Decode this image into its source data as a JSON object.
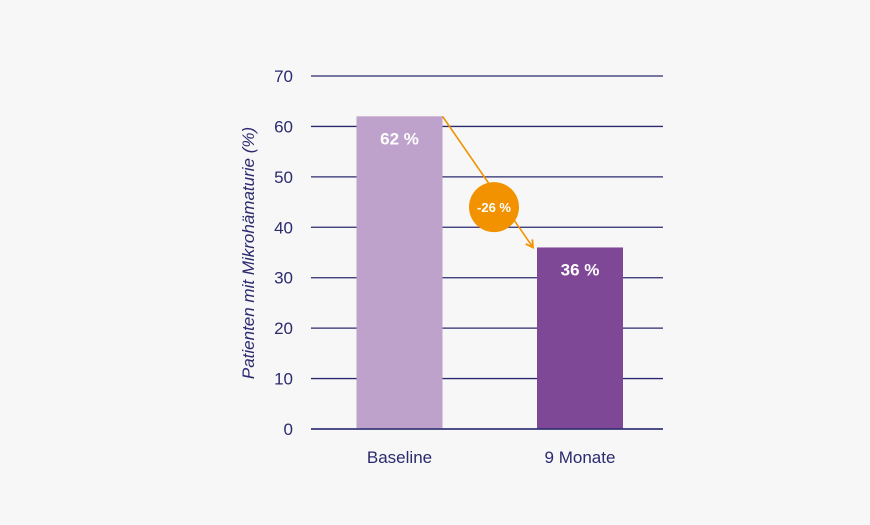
{
  "chart_data": {
    "type": "bar",
    "categories": [
      "Baseline",
      "9 Monate"
    ],
    "values": [
      62,
      36
    ],
    "value_labels": [
      "62 %",
      "36 %"
    ],
    "ylabel": "Patienten mit Mikrohämaturie (%)",
    "ylim": [
      0,
      70
    ],
    "yticks": [
      0,
      10,
      20,
      30,
      40,
      50,
      60,
      70
    ],
    "grid": true,
    "bar_colors": [
      "#bea2cb",
      "#7f4896"
    ],
    "annotation": {
      "text": "-26 %",
      "from": "Baseline",
      "to": "9 Monate",
      "color": "#f39200"
    },
    "colors": {
      "axis": "#2b2a6e",
      "background": "#f7f7f7",
      "label_text": "#ffffff"
    }
  }
}
